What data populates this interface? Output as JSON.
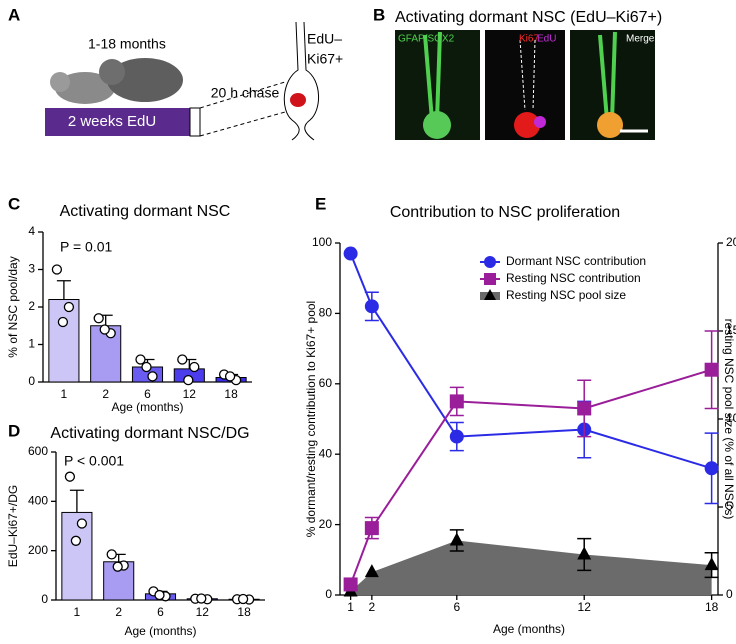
{
  "panels": {
    "A": {
      "letter": "A",
      "age": "1-18 months",
      "treatment": "2 weeks EdU",
      "chase": "20 h chase",
      "cell_label_1": "EdU–",
      "cell_label_2": "Ki67+"
    },
    "B": {
      "letter": "B",
      "title": "Activating dormant NSC (EdU–Ki67+)",
      "image_1": "GFAP/SOX2",
      "image_2_a": "Ki67",
      "image_2_b": "EdU",
      "image_3": "Merge"
    }
  },
  "chart_data": [
    {
      "type": "bar",
      "letter": "C",
      "title": "Activating dormant NSC",
      "annotation": "P = 0.01",
      "y_label": "% of NSC pool/day",
      "x_label": "Age (months)",
      "categories": [
        "1",
        "2",
        "6",
        "12",
        "18"
      ],
      "values": [
        2.2,
        1.5,
        0.4,
        0.35,
        0.12
      ],
      "errors": [
        0.5,
        0.28,
        0.2,
        0.25,
        0.08
      ],
      "points": [
        [
          3.0,
          2.0,
          1.6
        ],
        [
          1.7,
          1.3,
          1.4
        ],
        [
          0.6,
          0.15,
          0.4
        ],
        [
          0.6,
          0.4,
          0.05
        ],
        [
          0.2,
          0.05,
          0.15
        ]
      ],
      "colors": [
        "#ccc6f6",
        "#a79cf1",
        "#6a5cf0",
        "#4b3deb",
        "#3b2ce6"
      ],
      "ylim": [
        0,
        4
      ],
      "yticks": [
        0,
        1,
        2,
        3,
        4
      ]
    },
    {
      "type": "bar",
      "letter": "D",
      "title": "Activating dormant NSC/DG",
      "annotation": "P < 0.001",
      "y_label": "EdU–Ki67+/DG",
      "x_label": "Age (months)",
      "categories": [
        "1",
        "2",
        "6",
        "12",
        "18"
      ],
      "values": [
        355,
        155,
        25,
        5,
        3
      ],
      "errors": [
        90,
        30,
        10,
        3,
        2
      ],
      "points": [
        [
          500,
          310,
          240
        ],
        [
          185,
          140,
          135
        ],
        [
          35,
          15,
          20
        ],
        [
          5,
          3,
          6
        ],
        [
          3,
          2,
          4
        ]
      ],
      "colors": [
        "#ccc6f6",
        "#a79cf1",
        "#6a5cf0",
        "#4b3deb",
        "#3b2ce6"
      ],
      "ylim": [
        0,
        600
      ],
      "yticks": [
        0,
        200,
        400,
        600
      ]
    },
    {
      "type": "line",
      "letter": "E",
      "title": "Contribution to NSC proliferation",
      "y_label": "% dormant/resting contribution to Ki67+ pool",
      "y2_label": "resting NSC pool size (% of all NSCs)",
      "x_label": "Age (months)",
      "x": [
        1,
        2,
        6,
        12,
        18
      ],
      "xlim": [
        0.5,
        18.3
      ],
      "xticks": [
        1,
        2,
        6,
        12,
        18
      ],
      "ylim": [
        0,
        100
      ],
      "yticks": [
        0,
        20,
        40,
        60,
        80,
        100
      ],
      "y2lim": [
        0,
        20
      ],
      "y2ticks": [
        0,
        5,
        10,
        15,
        20
      ],
      "legend": "upper right",
      "series": [
        {
          "name": "Dormant NSC contribution",
          "color": "#2b2be6",
          "marker": "circle",
          "values": [
            97,
            82,
            45,
            47,
            36
          ],
          "errors": [
            0,
            4,
            4,
            8,
            10
          ]
        },
        {
          "name": "Resting NSC contribution",
          "color": "#9a1d9a",
          "marker": "square",
          "values": [
            3,
            19,
            55,
            53,
            64
          ],
          "errors": [
            0,
            3,
            4,
            8,
            11
          ]
        },
        {
          "name": "Resting NSC pool size",
          "color": "#6b6b6b",
          "marker": "triangle",
          "marker_color": "#000000",
          "axis": "y2",
          "area": true,
          "values": [
            0.2,
            1.3,
            3.1,
            2.3,
            1.7
          ],
          "errors": [
            0,
            0,
            0.6,
            0.9,
            0.7
          ]
        }
      ]
    }
  ]
}
